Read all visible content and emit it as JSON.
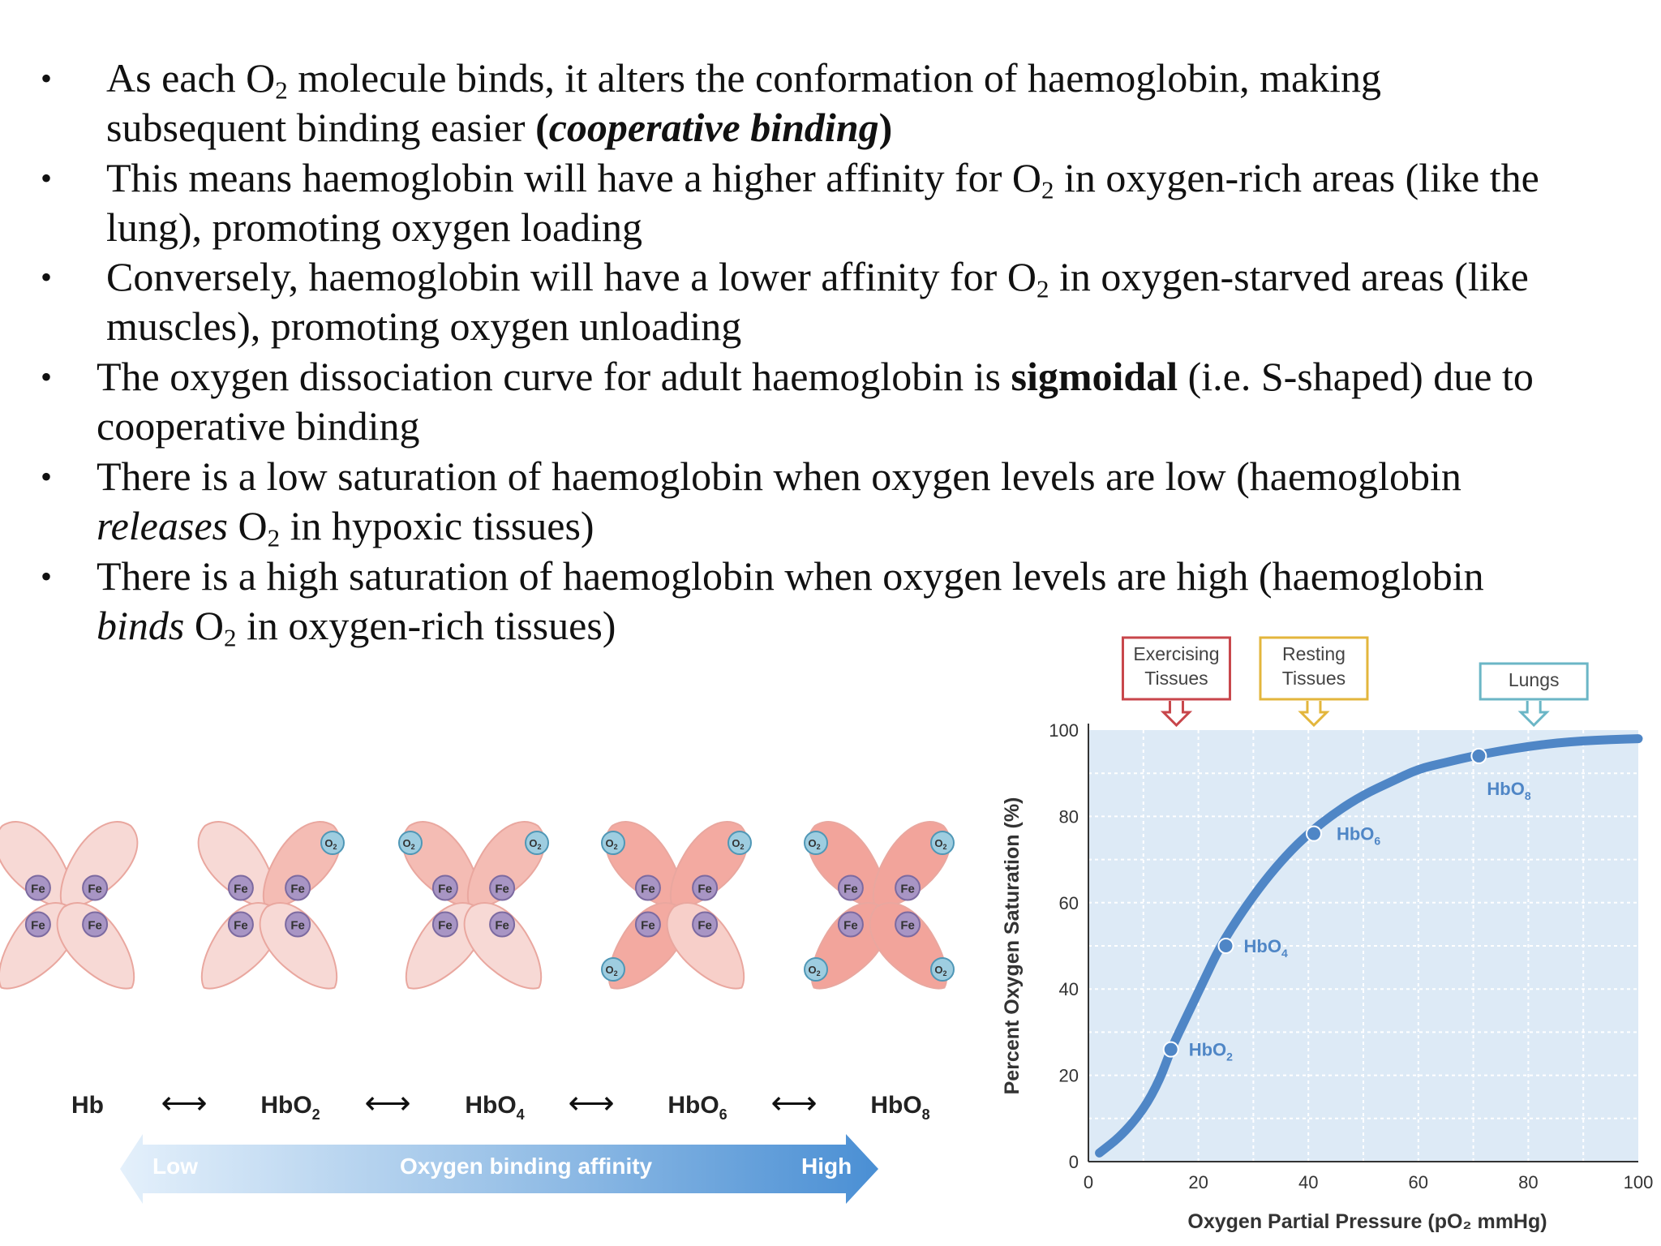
{
  "bullets": [
    {
      "segments": [
        {
          "t": "As each O"
        },
        {
          "t": "2",
          "sub": true
        },
        {
          "t": " molecule binds, it alters the conformation of haemoglobin, making"
        }
      ],
      "cont": [
        {
          "t": "subsequent binding easier "
        },
        {
          "t": "(",
          "b": true
        },
        {
          "t": "cooperative binding",
          "bi": true
        },
        {
          "t": ")",
          "b": true
        }
      ]
    },
    {
      "segments": [
        {
          "t": "This means haemoglobin will have a higher affinity for O"
        },
        {
          "t": "2",
          "sub": true
        },
        {
          "t": " in oxygen-rich areas (like the"
        }
      ],
      "cont": [
        {
          "t": "lung), promoting oxygen loading"
        }
      ]
    },
    {
      "segments": [
        {
          "t": "Conversely, haemoglobin will have a lower affinity for O"
        },
        {
          "t": "2",
          "sub": true
        },
        {
          "t": " in oxygen-starved areas (like"
        }
      ],
      "cont": [
        {
          "t": "muscles), promoting oxygen unloading"
        }
      ]
    },
    {
      "segments": [
        {
          "t": "The oxygen dissociation curve for adult haemoglobin is "
        },
        {
          "t": "sigmoidal",
          "b": true
        },
        {
          "t": " (i.e. S-shaped) due to"
        }
      ],
      "cont": [
        {
          "t": "cooperative binding"
        }
      ]
    },
    {
      "segments": [
        {
          "t": "There is a low saturation of haemoglobin when oxygen levels are low (haemoglobin"
        }
      ],
      "cont": [
        {
          "t": "releases",
          "i": true
        },
        {
          "t": " O"
        },
        {
          "t": "2",
          "sub": true
        },
        {
          "t": " in hypoxic tissues)"
        }
      ]
    },
    {
      "segments": [
        {
          "t": "There is a high saturation of haemoglobin when oxygen levels are high (haemoglobin"
        }
      ],
      "cont": [
        {
          "t": "binds",
          "i": true
        },
        {
          "t": " O"
        },
        {
          "t": "2",
          "sub": true
        },
        {
          "t": " in oxygen-rich tissues)"
        }
      ]
    }
  ],
  "bullet_char": "•",
  "diagram": {
    "stages": [
      {
        "label": "Hb",
        "sub": "",
        "o2": 0
      },
      {
        "label": "HbO",
        "sub": "2",
        "o2": 1
      },
      {
        "label": "HbO",
        "sub": "4",
        "o2": 2
      },
      {
        "label": "HbO",
        "sub": "6",
        "o2": 3
      },
      {
        "label": "HbO",
        "sub": "8",
        "o2": 4
      }
    ],
    "fe_label": "Fe",
    "o2_label": "O",
    "o2_sub": "2",
    "arrow_glyph": "⟷",
    "affinity_low": "Low",
    "affinity_title": "Oxygen binding affinity",
    "affinity_high": "High",
    "colors": {
      "subunit_light": "#f7d9d5",
      "subunit_dark": "#f2a49b",
      "heme": "#a895c4",
      "o2": "#9ecde0"
    }
  },
  "chart_data": {
    "type": "line",
    "xlabel": "Oxygen Partial Pressure (pO₂ mmHg)",
    "ylabel": "Percent Oxygen Saturation (%)",
    "xlim": [
      0,
      100
    ],
    "ylim": [
      0,
      100
    ],
    "x_ticks": [
      0,
      20,
      40,
      60,
      80,
      100
    ],
    "y_ticks": [
      0,
      20,
      40,
      60,
      80,
      100
    ],
    "grid": true,
    "curve": {
      "x": [
        2,
        6,
        10,
        13,
        15,
        18,
        21,
        24,
        28,
        32,
        36,
        40,
        45,
        50,
        55,
        60,
        65,
        70,
        75,
        80,
        85,
        90,
        95,
        100
      ],
      "y": [
        2,
        6,
        12,
        19,
        26,
        34,
        42,
        50,
        58,
        65,
        71,
        76,
        81,
        85,
        88,
        91,
        92.5,
        94,
        95.2,
        96.2,
        97,
        97.5,
        97.8,
        98
      ]
    },
    "points": [
      {
        "label": "HbO",
        "sub": "2",
        "x": 15,
        "y": 26
      },
      {
        "label": "HbO",
        "sub": "4",
        "x": 25,
        "y": 50
      },
      {
        "label": "HbO",
        "sub": "6",
        "x": 41,
        "y": 76
      },
      {
        "label": "HbO",
        "sub": "8",
        "x": 71,
        "y": 94
      }
    ],
    "markers": [
      {
        "label": [
          "Exercising",
          "Tissues"
        ],
        "x": 16,
        "color": "#c8464b"
      },
      {
        "label": [
          "Resting",
          "Tissues"
        ],
        "x": 41,
        "color": "#e3b63c"
      },
      {
        "label": [
          "Lungs"
        ],
        "x": 81,
        "color": "#6bb6c6"
      }
    ],
    "colors": {
      "curve": "#4f86c6",
      "background": "#ddeaf6",
      "grid": "#ffffff"
    }
  }
}
